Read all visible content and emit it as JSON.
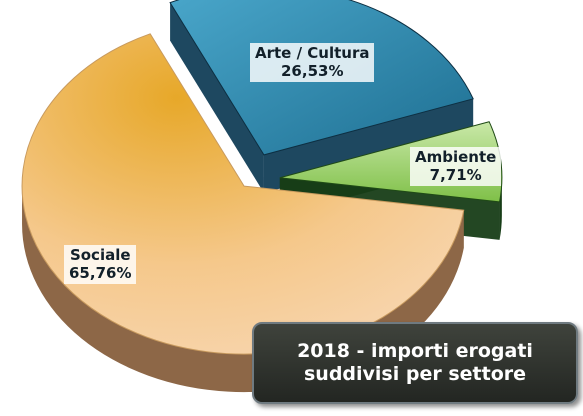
{
  "chart_data": {
    "type": "pie",
    "style": "3d-exploded",
    "title_lines": [
      "2018 - importi erogati",
      "suddivisi per settore"
    ],
    "slices": [
      {
        "label": "Arte / Cultura",
        "value": 26.53,
        "value_text": "26,53%",
        "color": "#2f86a9"
      },
      {
        "label": "Ambiente",
        "value": 7.71,
        "value_text": "7,71%",
        "color": "#9fcf73"
      },
      {
        "label": "Sociale",
        "value": 65.76,
        "value_text": "65,76%",
        "color": "#f1b463"
      }
    ],
    "legend": "none"
  }
}
